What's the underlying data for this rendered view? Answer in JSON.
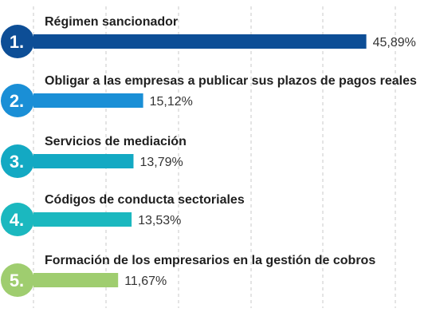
{
  "chart_data": {
    "type": "bar",
    "orientation": "horizontal",
    "categories": [
      "Régimen sancionador",
      "Obligar a las empresas a publicar sus plazos de pagos reales",
      "Servicios de mediación",
      "Códigos de conducta sectoriales",
      "Formación de los empresarios en la gestión de cobros"
    ],
    "ranks": [
      "1.",
      "2.",
      "3.",
      "4.",
      "5."
    ],
    "values": [
      45.89,
      15.12,
      13.79,
      13.53,
      11.67
    ],
    "value_labels": [
      "45,89%",
      "15,12%",
      "13,79%",
      "13,53%",
      "11,67%"
    ],
    "xlim": [
      0,
      55
    ],
    "grid": "vertical dashed",
    "colors": [
      "#0d4e96",
      "#1a8fd6",
      "#13a9c3",
      "#1bb8bf",
      "#9fcd6f"
    ]
  }
}
